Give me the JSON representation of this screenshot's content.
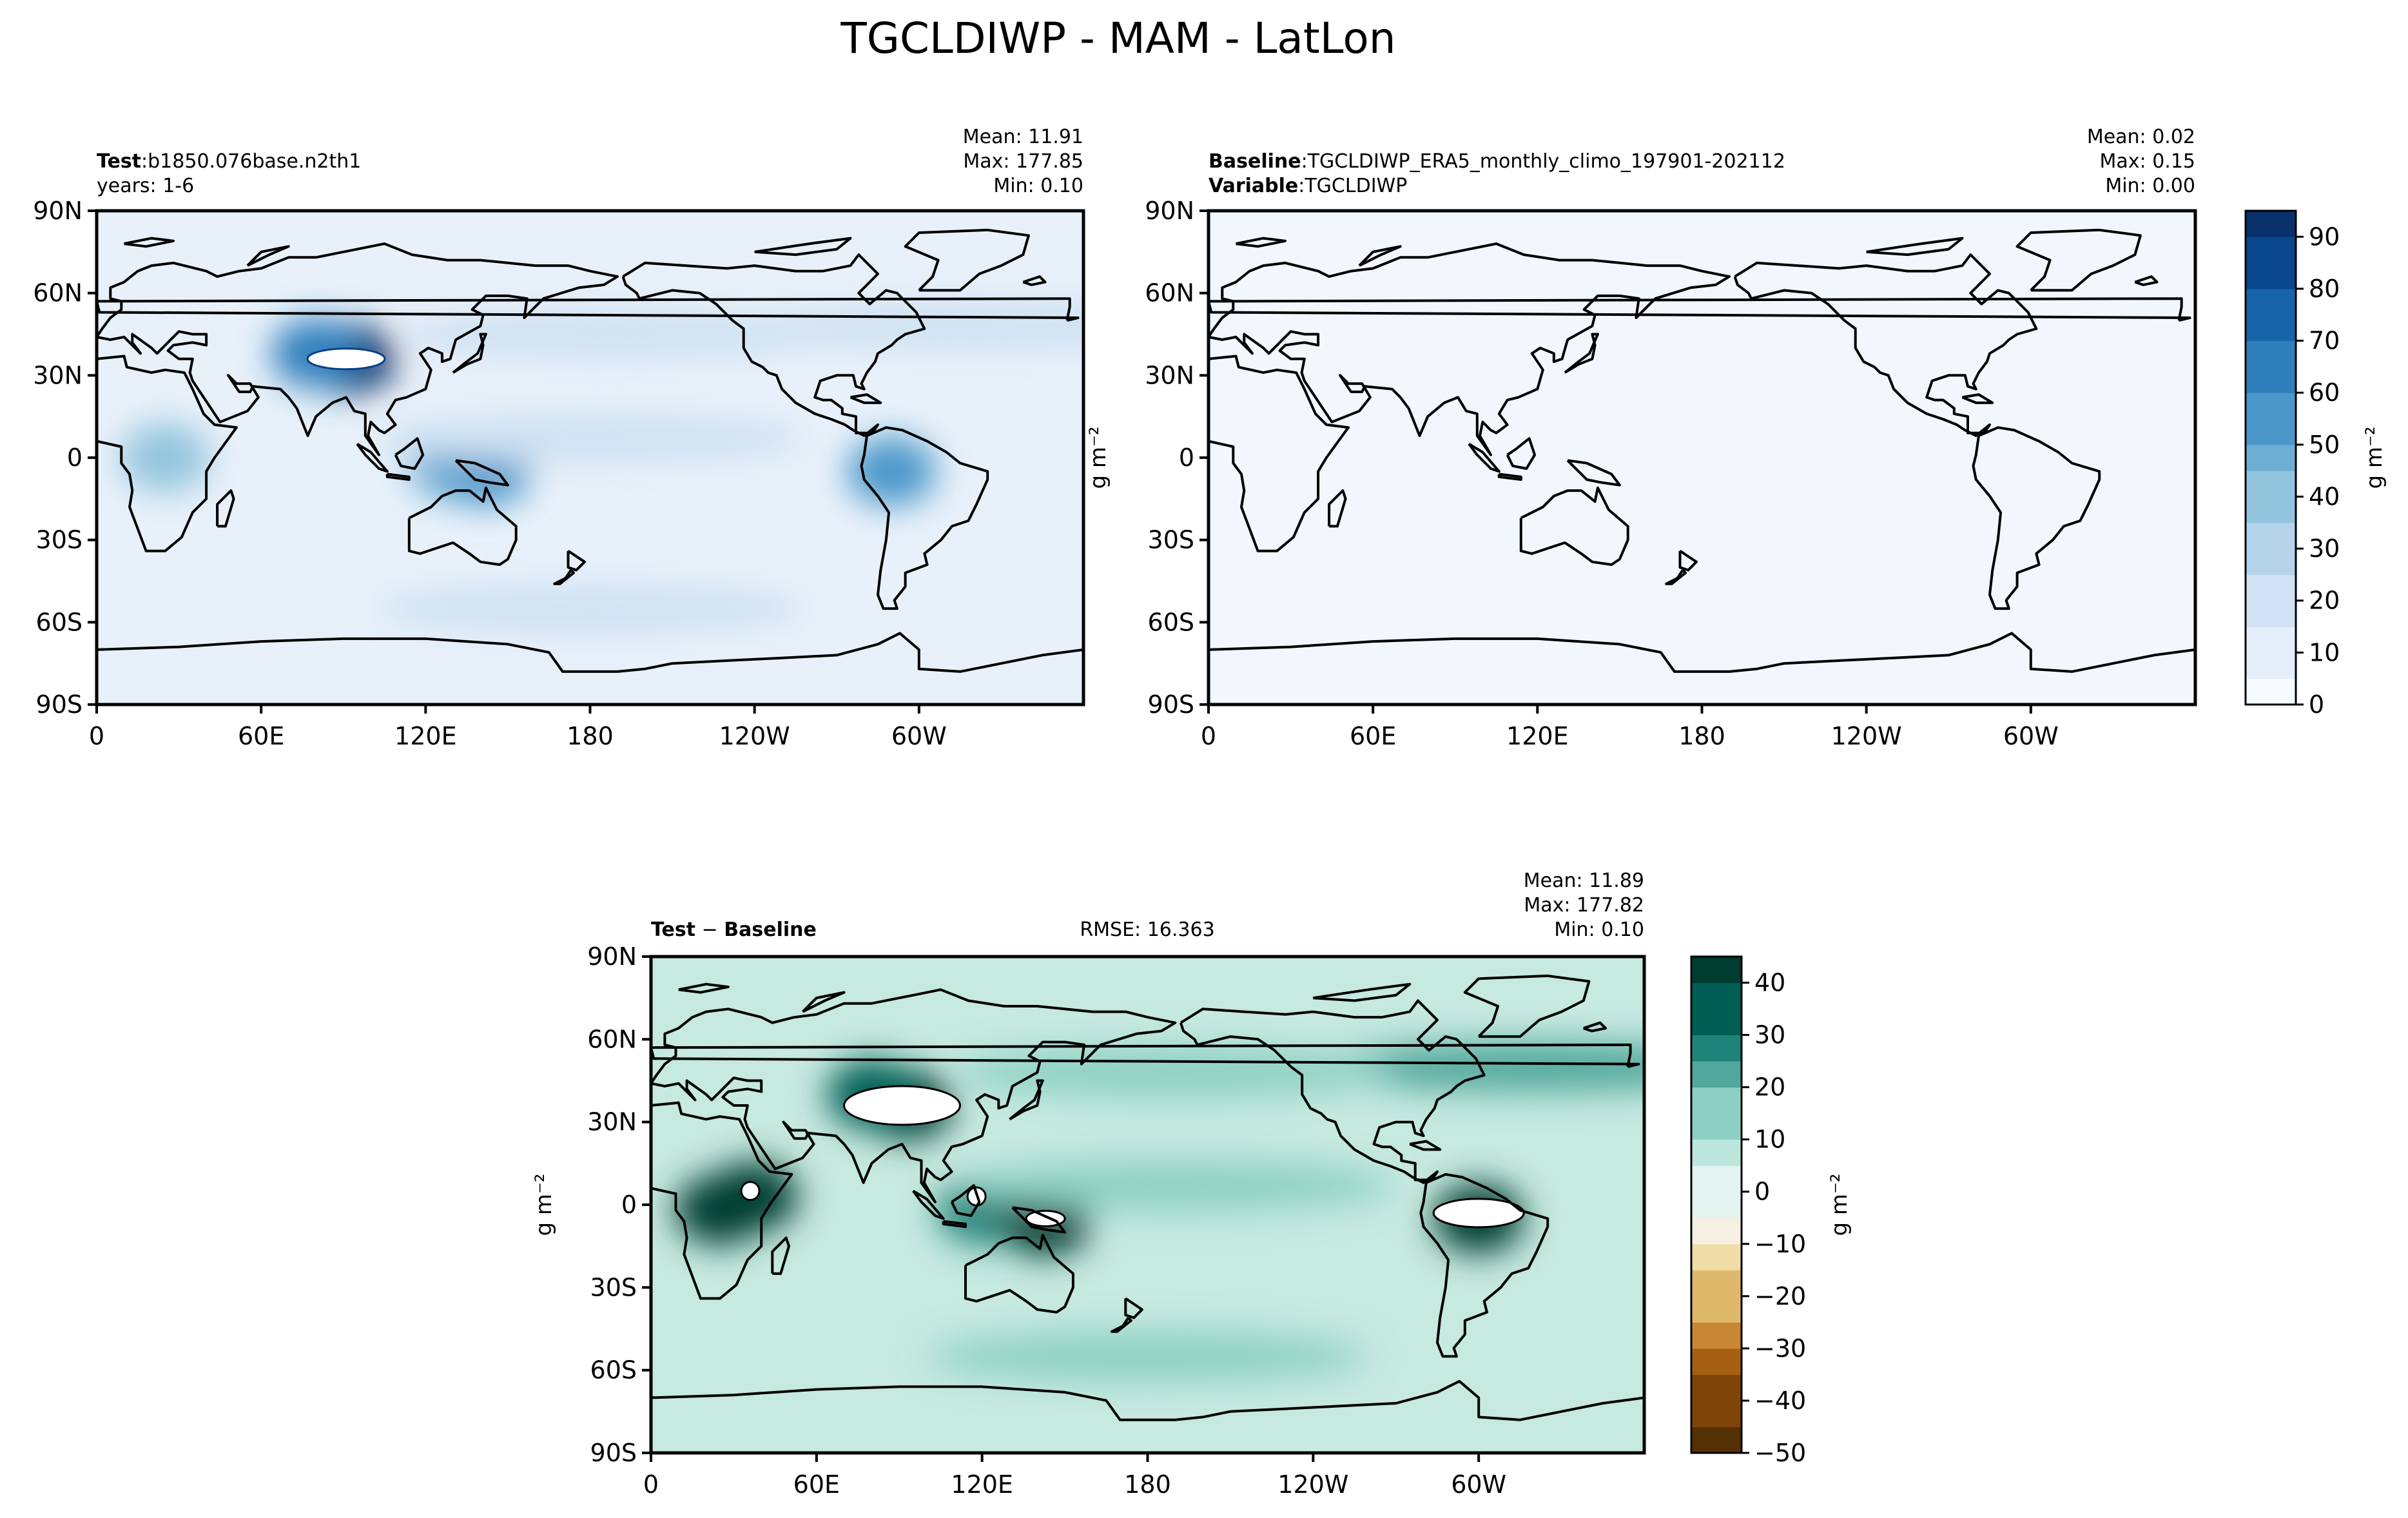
{
  "figure": {
    "title": "TGCLDIWP - MAM - LatLon"
  },
  "chart_data": [
    {
      "type": "heatmap",
      "panel": "test",
      "label_bold_1": "Test",
      "label_value_1": "b1850.076base.n2th1",
      "label_line_2": "years: 1-6",
      "stats": {
        "mean": "Mean: 11.91",
        "max": "Max: 177.85",
        "min": "Min:  0.10"
      },
      "xticks": [
        "0",
        "60E",
        "120E",
        "180",
        "120W",
        "60W"
      ],
      "yticks": [
        "90N",
        "60N",
        "30N",
        "0",
        "30S",
        "60S",
        "90S"
      ],
      "xlim": [
        0,
        360
      ],
      "ylim": [
        -90,
        90
      ],
      "cmap": "Blues",
      "vmin": 0,
      "vmax": 95,
      "units": "g m⁻²",
      "features": [
        {
          "region": "tibetan-plateau",
          "lon": 93,
          "lat": 36,
          "value": 95
        },
        {
          "region": "tibetan-rim",
          "lon": 80,
          "lat": 38,
          "value": 70
        },
        {
          "region": "andes-amazon",
          "lon": 290,
          "lat": -5,
          "value": 60
        },
        {
          "region": "central-africa",
          "lon": 25,
          "lat": 0,
          "value": 40
        },
        {
          "region": "maritime-continent",
          "lon": 130,
          "lat": -3,
          "value": 45
        },
        {
          "region": "new-guinea",
          "lon": 142,
          "lat": -5,
          "value": 55
        },
        {
          "region": "itcz",
          "lon": 180,
          "lat": 7,
          "value": 22
        },
        {
          "region": "north-atlantic",
          "lon": 320,
          "lat": 48,
          "value": 20
        },
        {
          "region": "north-pacific",
          "lon": 190,
          "lat": 45,
          "value": 18
        },
        {
          "region": "southern-ocean",
          "lon": 180,
          "lat": -55,
          "value": 15
        }
      ]
    },
    {
      "type": "heatmap",
      "panel": "baseline",
      "label_bold_1": "Baseline",
      "label_value_1": "TGCLDIWP_ERA5_monthly_climo_197901-202112",
      "label_bold_2": "Variable",
      "label_value_2": "TGCLDIWP",
      "stats": {
        "mean": "Mean:  0.02",
        "max": "Max:  0.15",
        "min": "Min:  0.00"
      },
      "xticks": [
        "0",
        "60E",
        "120E",
        "180",
        "120W",
        "60W"
      ],
      "yticks": [
        "90N",
        "60N",
        "30N",
        "0",
        "30S",
        "60S",
        "90S"
      ],
      "xlim": [
        0,
        360
      ],
      "ylim": [
        -90,
        90
      ],
      "cmap": "Blues",
      "vmin": 0,
      "vmax": 95,
      "value": 0.02
    },
    {
      "type": "heatmap",
      "panel": "difference",
      "label_bold_1": "Test",
      "label_sep": " − ",
      "label_bold_2": "Baseline",
      "rmse": "RMSE: 16.363",
      "stats": {
        "mean": "Mean: 11.89",
        "max": "Max: 177.82",
        "min": "Min:  0.10"
      },
      "xticks": [
        "0",
        "60E",
        "120E",
        "180",
        "120W",
        "60W"
      ],
      "yticks": [
        "90N",
        "60N",
        "30N",
        "0",
        "30S",
        "60S",
        "90S"
      ],
      "xlim": [
        0,
        360
      ],
      "ylim": [
        -90,
        90
      ],
      "cmap": "BrBG",
      "vmin": -50,
      "vmax": 45,
      "units": "g m⁻²",
      "features": [
        {
          "region": "tibetan-plateau",
          "lon": 93,
          "lat": 36,
          "value": 80
        },
        {
          "region": "tibetan-rim",
          "lon": 80,
          "lat": 40,
          "value": 40
        },
        {
          "region": "andes-amazon",
          "lon": 300,
          "lat": -5,
          "value": 60
        },
        {
          "region": "central-africa",
          "lon": 25,
          "lat": -2,
          "value": 45
        },
        {
          "region": "east-africa-highlands",
          "lon": 37,
          "lat": 3,
          "value": 60
        },
        {
          "region": "maritime-continent",
          "lon": 120,
          "lat": -2,
          "value": 30
        },
        {
          "region": "new-guinea",
          "lon": 143,
          "lat": -6,
          "value": 55
        },
        {
          "region": "itcz",
          "lon": 190,
          "lat": 7,
          "value": 18
        },
        {
          "region": "north-atlantic",
          "lon": 320,
          "lat": 50,
          "value": 20
        },
        {
          "region": "north-pacific",
          "lon": 190,
          "lat": 48,
          "value": 18
        },
        {
          "region": "southern-ocean",
          "lon": 180,
          "lat": -55,
          "value": 15
        }
      ]
    }
  ],
  "colorbars": [
    {
      "panel": "test-baseline",
      "ticks": [
        "90",
        "80",
        "70",
        "60",
        "50",
        "40",
        "30",
        "20",
        "10",
        "0"
      ],
      "label": "g m⁻²"
    },
    {
      "panel": "difference",
      "ticks": [
        "40",
        "30",
        "20",
        "10",
        "0",
        "−10",
        "−20",
        "−30",
        "−40",
        "−50"
      ],
      "label": "g m⁻²"
    }
  ],
  "ylabels": {
    "baseline_left": "g m⁻²",
    "difference_left": "g m⁻²"
  }
}
